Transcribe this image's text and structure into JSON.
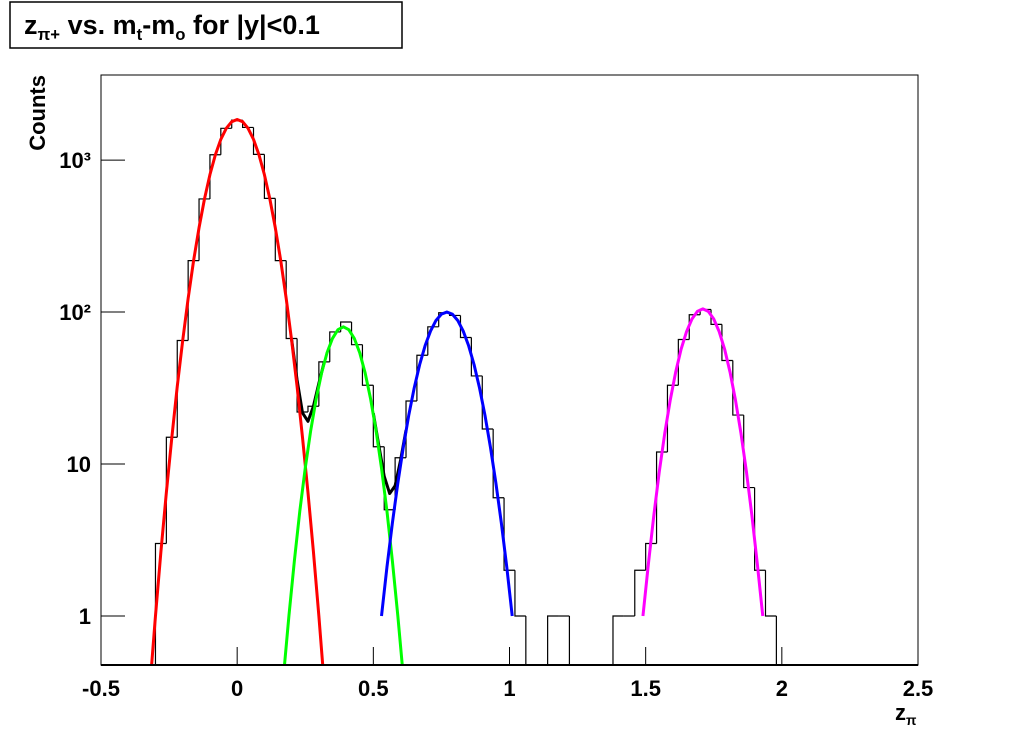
{
  "chart_data": {
    "type": "histogram",
    "title": {
      "parts": [
        "z",
        "π+",
        " vs. m",
        "t",
        "-m",
        "o",
        " for |y|<0.1"
      ]
    },
    "x_label": {
      "parts": [
        "z",
        "π"
      ]
    },
    "y_label": "Counts",
    "log_y": true,
    "color": "#000000",
    "xlim": [
      -0.5,
      2.5
    ],
    "xticks": [
      -0.5,
      0,
      0.5,
      1,
      1.5,
      2,
      2.5
    ],
    "ylim": [
      0.476,
      3630
    ],
    "yticks": [
      1,
      10,
      {
        "value": 100,
        "label": "10²"
      },
      {
        "value": 1000,
        "label": "10³"
      }
    ],
    "bins": [
      -0.3,
      -0.26,
      -0.22,
      -0.18,
      -0.14,
      -0.1,
      -0.06,
      -0.02,
      0.02,
      0.06,
      0.1,
      0.14,
      0.18,
      0.22,
      0.26,
      0.3,
      0.34,
      0.38,
      0.42,
      0.46,
      0.5,
      0.54,
      0.58,
      0.62,
      0.66,
      0.7,
      0.74,
      0.78,
      0.82,
      0.86,
      0.9,
      0.94,
      0.98,
      1.02,
      1.06,
      1.1,
      1.14,
      1.18,
      1.22,
      1.26,
      1.3,
      1.34,
      1.38,
      1.42,
      1.46,
      1.5,
      1.54,
      1.58,
      1.62,
      1.66,
      1.7,
      1.74,
      1.78,
      1.82,
      1.86,
      1.9,
      1.94,
      1.98,
      2.02
    ],
    "counts": [
      3,
      15,
      65,
      218,
      555,
      1084,
      1619,
      1832,
      1640,
      1090,
      560,
      218,
      67,
      22,
      24,
      47,
      74,
      86,
      61,
      33,
      13,
      5,
      11,
      26,
      52,
      80,
      99,
      95,
      68,
      38,
      17,
      6,
      2,
      1,
      0,
      0,
      1,
      1,
      0,
      0,
      0,
      0,
      1,
      1,
      2,
      3,
      12,
      33,
      66,
      96,
      104,
      83,
      48,
      21,
      7,
      2,
      1,
      0
    ],
    "fits": [
      {
        "color": "#000000",
        "x": [
          0.2,
          0.22,
          0.24,
          0.26,
          0.28,
          0.3,
          0.32,
          0.4,
          0.5,
          0.52,
          0.54,
          0.56,
          0.58,
          0.6,
          0.62
        ],
        "values": [
          66,
          35.8,
          21.7,
          19.1,
          24.0,
          34,
          47.2,
          null,
          21.6,
          13.3,
          8.3,
          6.4,
          7.2,
          10.6,
          16.7
        ]
      },
      {
        "color": "#ff0000",
        "x": [
          -0.32,
          -0.3,
          -0.28,
          -0.26,
          -0.24,
          -0.22,
          -0.2,
          -0.18,
          -0.16,
          -0.14,
          -0.12,
          -0.1,
          -0.08,
          -0.06,
          -0.04,
          -0.02,
          0,
          0.02,
          0.04,
          0.06,
          0.08,
          0.1,
          0.12,
          0.14,
          0.16,
          0.18,
          0.2,
          0.22,
          0.24,
          0.26,
          0.28,
          0.3,
          0.32
        ],
        "values": [
          0.35,
          1.0,
          2.65,
          6.5,
          14.9,
          32.4,
          65,
          123,
          218,
          359,
          555,
          802,
          1084,
          1369,
          1619,
          1789,
          1850,
          1789,
          1619,
          1369,
          1084,
          802,
          555,
          359,
          218,
          123,
          65,
          32.4,
          14.9,
          6.5,
          2.65,
          1.0,
          0.35
        ]
      },
      {
        "color": "#00ff00",
        "x": [
          0.17,
          0.19,
          0.21,
          0.23,
          0.25,
          0.27,
          0.29,
          0.31,
          0.33,
          0.35,
          0.37,
          0.39,
          0.41,
          0.43,
          0.45,
          0.47,
          0.49,
          0.51,
          0.53,
          0.55,
          0.57,
          0.59,
          0.61
        ],
        "values": [
          0.4,
          1.0,
          2.3,
          4.9,
          9.4,
          16.6,
          26.8,
          39.7,
          54,
          67.1,
          76.6,
          80,
          76.6,
          67.1,
          54,
          39.7,
          26.8,
          16.6,
          9.4,
          4.9,
          2.3,
          1.0,
          0.4
        ]
      },
      {
        "color": "#0000ff",
        "x": [
          0.53,
          0.55,
          0.57,
          0.59,
          0.61,
          0.63,
          0.65,
          0.67,
          0.69,
          0.71,
          0.73,
          0.75,
          0.77,
          0.79,
          0.81,
          0.83,
          0.85,
          0.87,
          0.89,
          0.91,
          0.93,
          0.95,
          0.97,
          0.99,
          1.01
        ],
        "values": [
          1.0,
          2.1,
          4.1,
          7.5,
          12.9,
          20.9,
          31.6,
          45,
          60,
          75,
          88,
          96.9,
          100,
          96.9,
          88,
          75,
          60,
          45,
          31.6,
          20.9,
          12.9,
          7.5,
          4.1,
          2.1,
          1.0
        ]
      },
      {
        "color": "#ff00ff",
        "x": [
          1.49,
          1.51,
          1.53,
          1.55,
          1.57,
          1.59,
          1.61,
          1.63,
          1.65,
          1.67,
          1.69,
          1.71,
          1.73,
          1.75,
          1.77,
          1.79,
          1.81,
          1.83,
          1.85,
          1.87,
          1.89,
          1.91,
          1.93
        ],
        "values": [
          1.0,
          2.2,
          4.6,
          8.9,
          15.9,
          26.2,
          40.1,
          56.9,
          74.3,
          90,
          101,
          105,
          101,
          90,
          74.3,
          56.9,
          40.1,
          26.2,
          15.9,
          8.9,
          4.6,
          2.2,
          1.0
        ]
      }
    ]
  }
}
